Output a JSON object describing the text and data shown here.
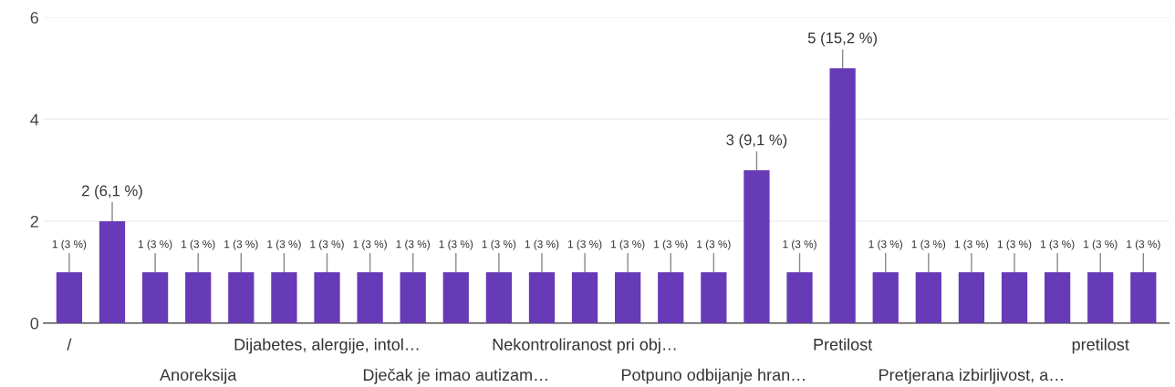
{
  "chart_data": {
    "type": "bar",
    "categories": [
      "/",
      null,
      null,
      "Anoreksija",
      null,
      null,
      "Dijabetes, alergije, intol…",
      null,
      null,
      "Dječak je imao autizam…",
      null,
      null,
      "Nekontroliranost pri obj…",
      null,
      null,
      "Potpuno odbijanje hran…",
      null,
      null,
      "Pretilost",
      null,
      null,
      "Pretjerana izbirljivost, a…",
      null,
      null,
      "pretilost",
      null
    ],
    "values": [
      1,
      2,
      1,
      1,
      1,
      1,
      1,
      1,
      1,
      1,
      1,
      1,
      1,
      1,
      1,
      1,
      3,
      1,
      5,
      1,
      1,
      1,
      1,
      1,
      1,
      1
    ],
    "value_labels": [
      "1 (3 %)",
      "2 (6,1 %)",
      "1 (3 %)",
      "1 (3 %)",
      "1 (3 %)",
      "1 (3 %)",
      "1 (3 %)",
      "1 (3 %)",
      "1 (3 %)",
      "1 (3 %)",
      "1 (3 %)",
      "1 (3 %)",
      "1 (3 %)",
      "1 (3 %)",
      "1 (3 %)",
      "1 (3 %)",
      "3 (9,1 %)",
      "1 (3 %)",
      "5 (15,2 %)",
      "1 (3 %)",
      "1 (3 %)",
      "1 (3 %)",
      "1 (3 %)",
      "1 (3 %)",
      "1 (3 %)",
      "1 (3 %)"
    ],
    "color": "#673ab7",
    "ylim": [
      0,
      6
    ],
    "yticks": [
      0,
      2,
      4,
      6
    ],
    "grid": "y"
  }
}
